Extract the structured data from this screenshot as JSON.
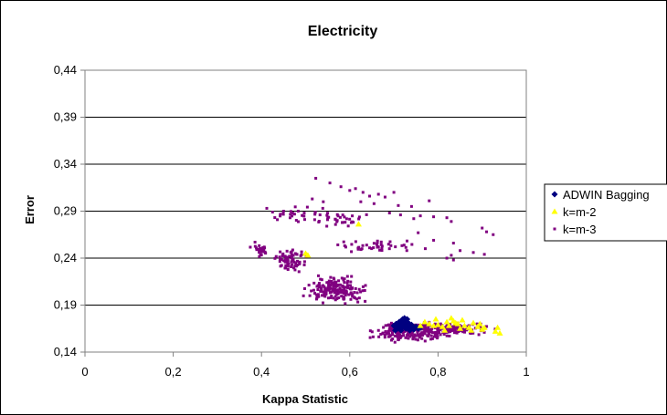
{
  "chart_data": {
    "type": "scatter",
    "title": "Electricity",
    "xlabel": "Kappa Statistic",
    "ylabel": "Error",
    "xlim": [
      0,
      1
    ],
    "ylim": [
      0.14,
      0.44
    ],
    "xticks": [
      "0",
      "0,2",
      "0,4",
      "0,6",
      "0,8",
      "1"
    ],
    "xtick_values": [
      0,
      0.2,
      0.4,
      0.6,
      0.8,
      1
    ],
    "yticks": [
      "0,14",
      "0,19",
      "0,24",
      "0,29",
      "0,34",
      "0,39",
      "0,44"
    ],
    "ytick_values": [
      0.14,
      0.19,
      0.24,
      0.29,
      0.34,
      0.39,
      0.44
    ],
    "grid": "horizontal",
    "legend_position": "right",
    "series": [
      {
        "name": "ADWIN Bagging",
        "marker": "diamond",
        "color": "#000080",
        "points": [
          [
            0.7,
            0.168
          ],
          [
            0.705,
            0.17
          ],
          [
            0.71,
            0.169
          ],
          [
            0.712,
            0.172
          ],
          [
            0.715,
            0.171
          ],
          [
            0.718,
            0.174
          ],
          [
            0.72,
            0.175
          ],
          [
            0.722,
            0.173
          ],
          [
            0.724,
            0.176
          ],
          [
            0.726,
            0.174
          ],
          [
            0.728,
            0.172
          ],
          [
            0.73,
            0.175
          ],
          [
            0.732,
            0.171
          ],
          [
            0.735,
            0.17
          ],
          [
            0.738,
            0.168
          ],
          [
            0.708,
            0.165
          ],
          [
            0.714,
            0.166
          ],
          [
            0.719,
            0.167
          ],
          [
            0.725,
            0.169
          ],
          [
            0.733,
            0.167
          ],
          [
            0.742,
            0.166
          ],
          [
            0.745,
            0.164
          ],
          [
            0.703,
            0.163
          ],
          [
            0.716,
            0.163
          ],
          [
            0.727,
            0.165
          ],
          [
            0.736,
            0.163
          ],
          [
            0.74,
            0.169
          ],
          [
            0.75,
            0.167
          ],
          [
            0.755,
            0.165
          ],
          [
            0.76,
            0.166
          ]
        ]
      },
      {
        "name": "k=m-2",
        "marker": "triangle",
        "color": "#ffff00",
        "points": [
          [
            0.5,
            0.245
          ],
          [
            0.505,
            0.243
          ],
          [
            0.62,
            0.276
          ],
          [
            0.83,
            0.176
          ],
          [
            0.835,
            0.173
          ],
          [
            0.84,
            0.171
          ],
          [
            0.78,
            0.17
          ],
          [
            0.79,
            0.168
          ],
          [
            0.8,
            0.169
          ],
          [
            0.81,
            0.167
          ],
          [
            0.82,
            0.172
          ],
          [
            0.85,
            0.165
          ],
          [
            0.86,
            0.168
          ],
          [
            0.87,
            0.166
          ],
          [
            0.88,
            0.171
          ],
          [
            0.89,
            0.167
          ],
          [
            0.9,
            0.164
          ],
          [
            0.93,
            0.162
          ],
          [
            0.935,
            0.166
          ],
          [
            0.94,
            0.16
          ],
          [
            0.76,
            0.168
          ],
          [
            0.77,
            0.172
          ],
          [
            0.795,
            0.175
          ],
          [
            0.815,
            0.163
          ],
          [
            0.825,
            0.168
          ],
          [
            0.845,
            0.17
          ],
          [
            0.855,
            0.174
          ],
          [
            0.875,
            0.163
          ],
          [
            0.895,
            0.17
          ],
          [
            0.905,
            0.166
          ]
        ]
      },
      {
        "name": "k=m-3",
        "marker": "square",
        "color": "#800080",
        "clusters": [
          {
            "cx": 0.398,
            "cy": 0.248,
            "sx": 0.009,
            "sy": 0.004,
            "n": 26
          },
          {
            "cx": 0.463,
            "cy": 0.238,
            "sx": 0.017,
            "sy": 0.005,
            "n": 70
          },
          {
            "cx": 0.572,
            "cy": 0.206,
            "sx": 0.03,
            "sy": 0.006,
            "n": 170
          },
          {
            "cx": 0.48,
            "cy": 0.286,
            "sx": 0.04,
            "sy": 0.004,
            "n": 28
          },
          {
            "cx": 0.57,
            "cy": 0.28,
            "sx": 0.028,
            "sy": 0.004,
            "n": 30
          },
          {
            "cx": 0.66,
            "cy": 0.252,
            "sx": 0.045,
            "sy": 0.004,
            "n": 42
          },
          {
            "cx": 0.74,
            "cy": 0.162,
            "sx": 0.038,
            "sy": 0.005,
            "n": 220
          },
          {
            "cx": 0.84,
            "cy": 0.165,
            "sx": 0.035,
            "sy": 0.003,
            "n": 120
          }
        ],
        "points": [
          [
            0.523,
            0.325
          ],
          [
            0.555,
            0.32
          ],
          [
            0.58,
            0.316
          ],
          [
            0.6,
            0.312
          ],
          [
            0.613,
            0.314
          ],
          [
            0.63,
            0.31
          ],
          [
            0.645,
            0.306
          ],
          [
            0.665,
            0.308
          ],
          [
            0.68,
            0.305
          ],
          [
            0.7,
            0.31
          ],
          [
            0.515,
            0.303
          ],
          [
            0.54,
            0.3
          ],
          [
            0.625,
            0.3
          ],
          [
            0.655,
            0.298
          ],
          [
            0.71,
            0.296
          ],
          [
            0.74,
            0.295
          ],
          [
            0.78,
            0.301
          ],
          [
            0.412,
            0.293
          ],
          [
            0.425,
            0.289
          ],
          [
            0.45,
            0.29
          ],
          [
            0.69,
            0.288
          ],
          [
            0.715,
            0.286
          ],
          [
            0.745,
            0.282
          ],
          [
            0.76,
            0.285
          ],
          [
            0.79,
            0.284
          ],
          [
            0.82,
            0.283
          ],
          [
            0.83,
            0.279
          ],
          [
            0.9,
            0.272
          ],
          [
            0.91,
            0.268
          ],
          [
            0.925,
            0.265
          ],
          [
            0.755,
            0.267
          ],
          [
            0.79,
            0.259
          ],
          [
            0.835,
            0.256
          ],
          [
            0.85,
            0.248
          ],
          [
            0.88,
            0.246
          ],
          [
            0.905,
            0.244
          ],
          [
            0.83,
            0.243
          ],
          [
            0.82,
            0.24
          ],
          [
            0.835,
            0.238
          ]
        ]
      }
    ]
  }
}
